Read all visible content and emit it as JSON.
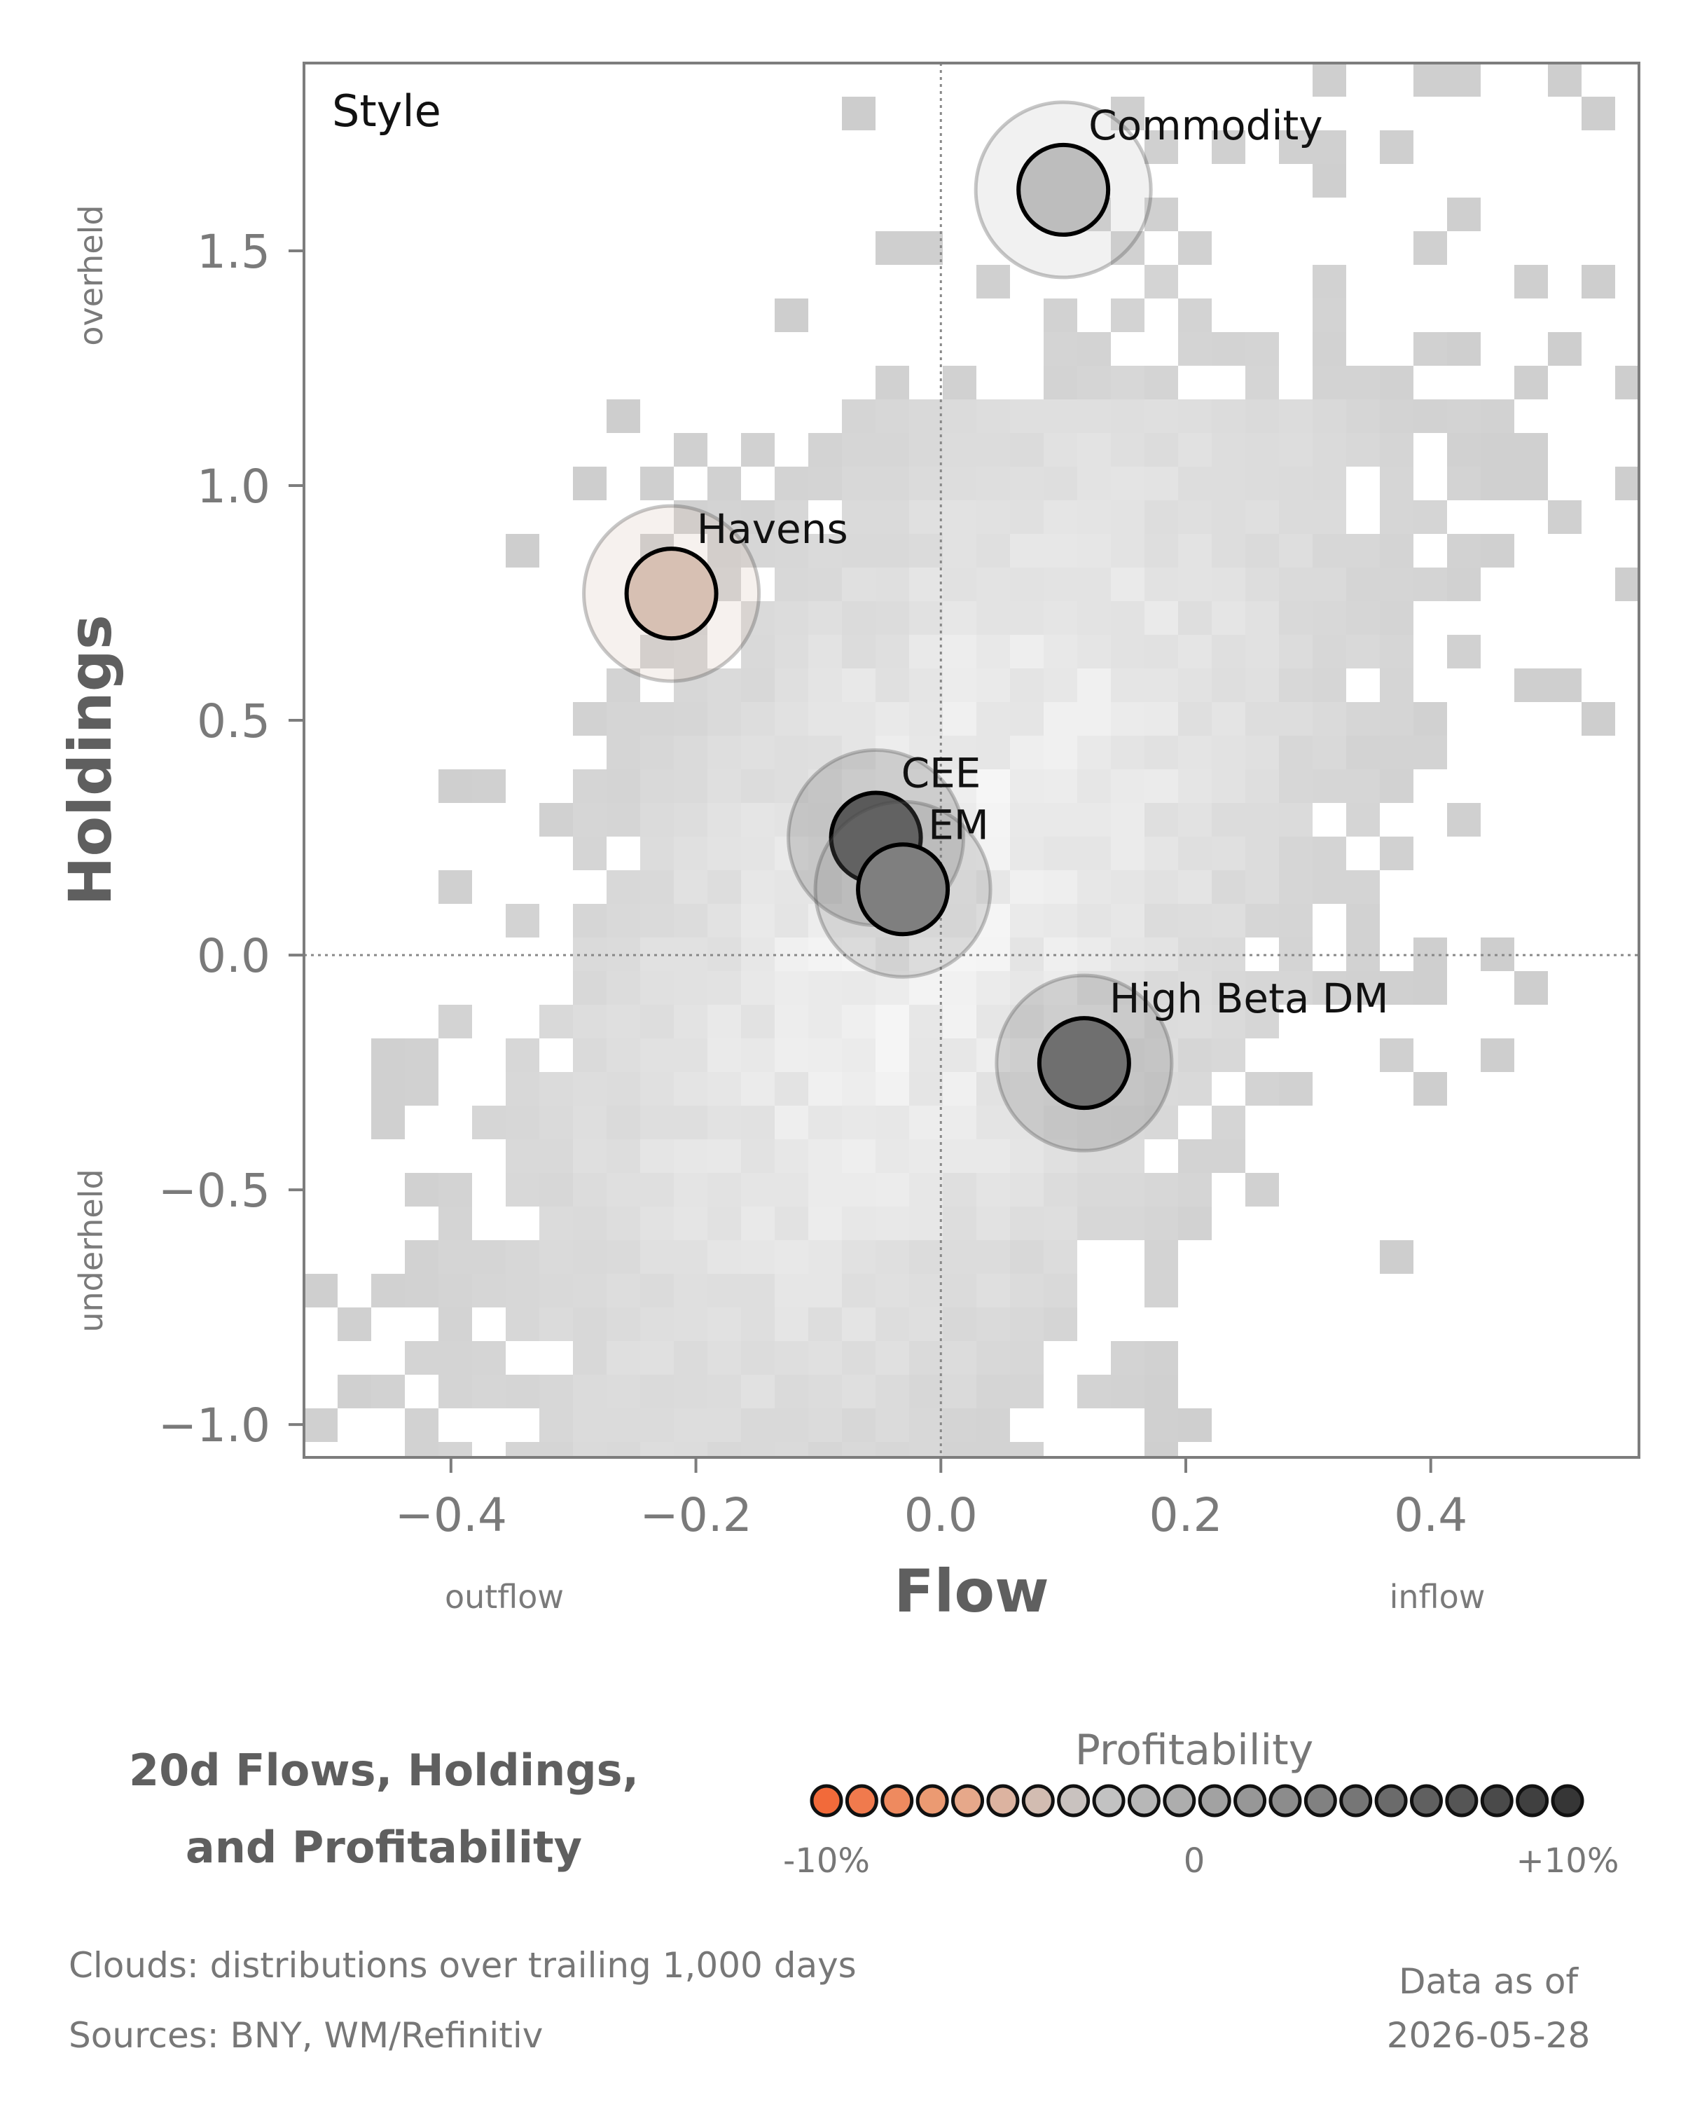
{
  "chart_data": {
    "type": "scatter",
    "title": "20d Flows, Holdings,\nand Profitability",
    "title_lines": [
      "20d Flows, Holdings,",
      "and Profitability"
    ],
    "panel_label": "Style",
    "xlabel": "Flow",
    "ylabel": "Holdings",
    "x_side_labels": {
      "left": "outflow",
      "right": "inflow"
    },
    "y_side_labels": {
      "top": "overheld",
      "bottom": "underheld"
    },
    "xlim": [
      -0.52,
      0.57
    ],
    "ylim": [
      -1.07,
      1.9
    ],
    "x_ticks": [
      -0.4,
      -0.2,
      0.0,
      0.2,
      0.4
    ],
    "x_tick_labels": [
      "−0.4",
      "−0.2",
      "0.0",
      "0.2",
      "0.4"
    ],
    "y_ticks": [
      -1.0,
      -0.5,
      0.0,
      0.5,
      1.0,
      1.5
    ],
    "y_tick_labels": [
      "−1.0",
      "−0.5",
      "0.0",
      "0.5",
      "1.0",
      "1.5"
    ],
    "reference_lines": {
      "x": 0,
      "y": 0,
      "style": "dotted"
    },
    "grid": false,
    "points": [
      {
        "name": "Commodity",
        "x": 0.1,
        "y": 1.63,
        "profitability": 0.02,
        "color": "#bdbdbd"
      },
      {
        "name": "Havens",
        "x": -0.22,
        "y": 0.77,
        "profitability": -0.03,
        "color": "#d7c0b3"
      },
      {
        "name": "CEE",
        "x": -0.053,
        "y": 0.25,
        "profitability": 0.085,
        "color": "#5a5a5a"
      },
      {
        "name": "EM",
        "x": -0.031,
        "y": 0.14,
        "profitability": 0.06,
        "color": "#7f7f7f"
      },
      {
        "name": "High Beta DM",
        "x": 0.117,
        "y": -0.23,
        "profitability": 0.065,
        "color": "#6f6f6f"
      }
    ],
    "background": "2D histogram clouds (gray)",
    "legend": {
      "title": "Profitability",
      "tick_labels": [
        "-10%",
        "0",
        "+10%"
      ],
      "colors": [
        "#f26a3a",
        "#f07a4d",
        "#ee8a5f",
        "#eb9a72",
        "#e6a88a",
        "#dcb3a0",
        "#d2bcb1",
        "#c9c2bf",
        "#c2c2c2",
        "#b7b7b7",
        "#adadad",
        "#a2a2a2",
        "#979797",
        "#8c8c8c",
        "#818181",
        "#767676",
        "#6b6b6b",
        "#606060",
        "#555555",
        "#4a4a4a",
        "#404040",
        "#363636"
      ]
    }
  },
  "footer": {
    "clouds_note": "Clouds:  distributions over trailing 1,000 days",
    "sources_note": "Sources:  BNY, WM/Refinitiv",
    "data_as_of_label": "Data as of",
    "data_as_of_date": "2026-05-28"
  }
}
